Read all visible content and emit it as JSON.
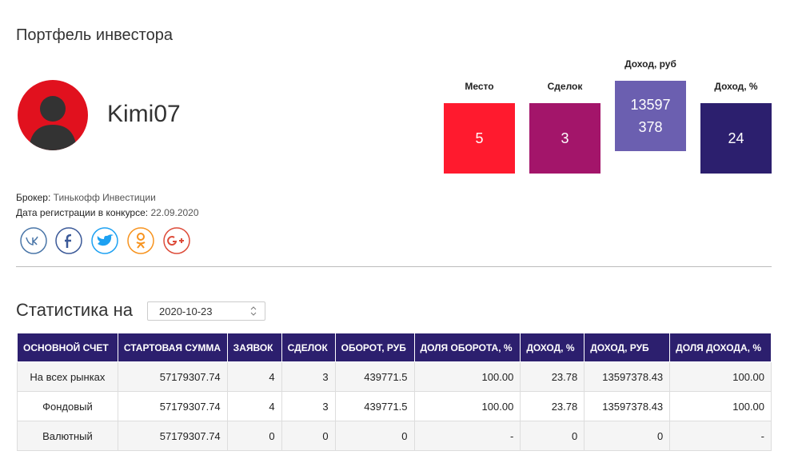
{
  "header": {
    "title": "Портфель инвестора"
  },
  "profile": {
    "username": "Kimi07",
    "broker_label": "Брокер:",
    "broker": "Тинькофф Инвестиции",
    "reg_label": "Дата регистрации в конкурсе:",
    "reg_date": "22.09.2020"
  },
  "stats": [
    {
      "label": "Место",
      "value": "5",
      "color": "#ff1a2e",
      "raised": false
    },
    {
      "label": "Сделок",
      "value": "3",
      "color": "#a3156a",
      "raised": false
    },
    {
      "label": "Доход, руб",
      "value": "13597378",
      "color": "#6b5fb0",
      "raised": true
    },
    {
      "label": "Доход, %",
      "value": "24",
      "color": "#2c1f6e",
      "raised": false
    }
  ],
  "statistics": {
    "title": "Статистика на",
    "date": "2020-10-23"
  },
  "table": {
    "columns": [
      "ОСНОВНОЙ СЧЕТ",
      "СТАРТОВАЯ СУММА",
      "ЗАЯВОК",
      "СДЕЛОК",
      "ОБОРОТ, РУБ",
      "ДОЛЯ ОБОРОТА, %",
      "ДОХОД, %",
      "ДОХОД, РУБ",
      "ДОЛЯ ДОХОДА, %"
    ],
    "rows": [
      [
        "На всех рынках",
        "57179307.74",
        "4",
        "3",
        "439771.5",
        "100.00",
        "23.78",
        "13597378.43",
        "100.00"
      ],
      [
        "Фондовый",
        "57179307.74",
        "4",
        "3",
        "439771.5",
        "100.00",
        "23.78",
        "13597378.43",
        "100.00"
      ],
      [
        "Валютный",
        "57179307.74",
        "0",
        "0",
        "0",
        "-",
        "0",
        "0",
        "-"
      ]
    ]
  }
}
